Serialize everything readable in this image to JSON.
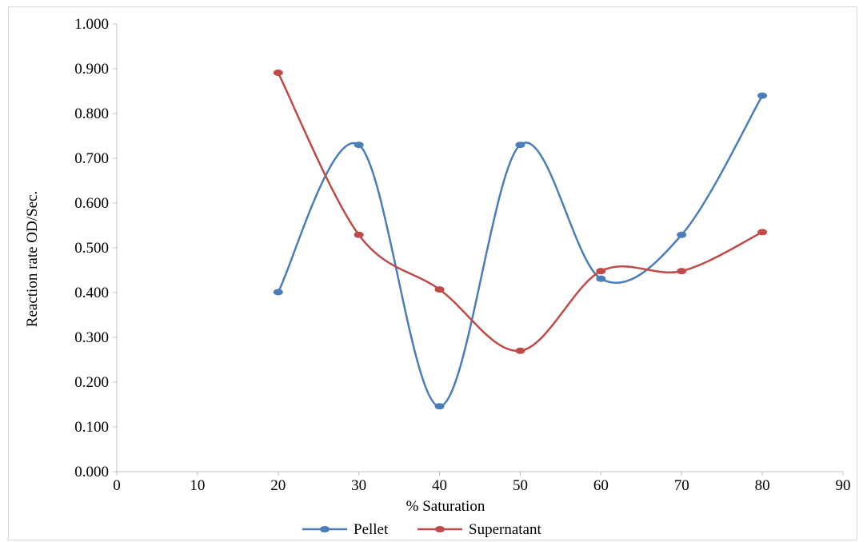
{
  "chart_data": {
    "type": "line",
    "smooth": true,
    "title": "",
    "xlabel": "% Saturation",
    "ylabel": "Reaction rate OD/Sec.",
    "xlim": [
      0,
      90
    ],
    "ylim": [
      0,
      1.0
    ],
    "x_ticks": [
      "0",
      "10",
      "20",
      "30",
      "40",
      "50",
      "60",
      "70",
      "80",
      "90"
    ],
    "y_ticks": [
      "0.000",
      "0.100",
      "0.200",
      "0.300",
      "0.400",
      "0.500",
      "0.600",
      "0.700",
      "0.800",
      "0.900",
      "1.000"
    ],
    "grid": false,
    "legend_position": "bottom",
    "series": [
      {
        "name": "Pellet",
        "color": "#4a7ebb",
        "x": [
          20,
          30,
          40,
          50,
          60,
          70,
          80
        ],
        "values": [
          0.401,
          0.73,
          0.146,
          0.73,
          0.431,
          0.529,
          0.84
        ]
      },
      {
        "name": "Supernatant",
        "color": "#be4b48",
        "x": [
          20,
          30,
          40,
          50,
          60,
          70,
          80
        ],
        "values": [
          0.891,
          0.529,
          0.407,
          0.27,
          0.448,
          0.448,
          0.535
        ]
      }
    ]
  }
}
